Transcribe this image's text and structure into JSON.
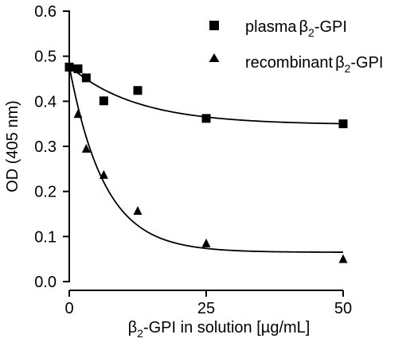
{
  "chart_data": {
    "type": "scatter",
    "title": "",
    "ylabel": "OD (405 nm)",
    "xlabel": {
      "beta": "β",
      "sub": "2",
      "rest": "-GPI in solution [µg/mL]"
    },
    "xlim": [
      0,
      50
    ],
    "ylim": [
      0,
      0.6
    ],
    "xticks": [
      0,
      25,
      50
    ],
    "yticks": [
      0.0,
      0.1,
      0.2,
      0.3,
      0.4,
      0.5,
      0.6
    ],
    "ytick_labels": [
      "0.0",
      "0.1",
      "0.2",
      "0.3",
      "0.4",
      "0.5",
      "0.6"
    ],
    "legend_position": "top-right",
    "series": [
      {
        "name": "plasma β2-GPI",
        "legend_text": "plasma",
        "legend_beta": "β",
        "legend_sub": "2",
        "legend_suffix": "-GPI",
        "marker": "square",
        "color": "#000000",
        "x": [
          0,
          1.6,
          3.1,
          6.3,
          12.5,
          25,
          50
        ],
        "y": [
          0.476,
          0.472,
          0.452,
          0.401,
          0.424,
          0.362,
          0.35
        ],
        "fit": {
          "model": "exponential",
          "y0": 0.478,
          "plateau": 0.348,
          "k": 0.081
        }
      },
      {
        "name": "recombinant β2-GPI",
        "legend_text": "recombinant",
        "legend_beta": "β",
        "legend_sub": "2",
        "legend_suffix": "-GPI",
        "marker": "triangle",
        "color": "#000000",
        "x": [
          0,
          1.6,
          3.1,
          6.3,
          12.5,
          25,
          50
        ],
        "y": [
          0.475,
          0.372,
          0.295,
          0.237,
          0.157,
          0.085,
          0.05
        ],
        "fit": {
          "model": "exponential",
          "y0": 0.478,
          "plateau": 0.065,
          "k": 0.155
        }
      }
    ]
  }
}
